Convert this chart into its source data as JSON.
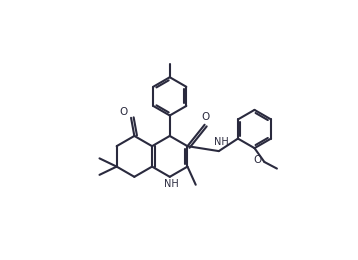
{
  "bg": "#ffffff",
  "lc": "#2a2a3e",
  "lw": 1.5,
  "figsize": [
    3.58,
    2.6
  ],
  "dpi": 100,
  "xlim": [
    0.5,
    9.5
  ],
  "ylim": [
    1.0,
    8.8
  ],
  "ring_R": 0.62,
  "label_fontsize": 7.0
}
